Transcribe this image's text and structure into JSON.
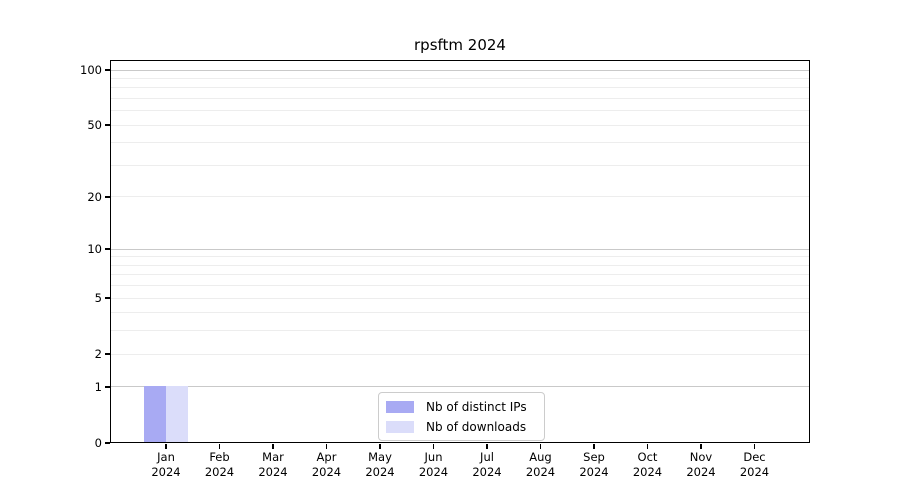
{
  "chart_data": {
    "type": "bar",
    "title": "rpsftm 2024",
    "categories": [
      "Jan 2024",
      "Feb 2024",
      "Mar 2024",
      "Apr 2024",
      "May 2024",
      "Jun 2024",
      "Jul 2024",
      "Aug 2024",
      "Sep 2024",
      "Oct 2024",
      "Nov 2024",
      "Dec 2024"
    ],
    "months": [
      "Jan",
      "Feb",
      "Mar",
      "Apr",
      "May",
      "Jun",
      "Jul",
      "Aug",
      "Sep",
      "Oct",
      "Nov",
      "Dec"
    ],
    "year": "2024",
    "series": [
      {
        "name": "Nb of distinct IPs",
        "color": "#a8aaf3",
        "values": [
          1,
          0,
          0,
          0,
          0,
          0,
          0,
          0,
          0,
          0,
          0,
          0
        ]
      },
      {
        "name": "Nb of downloads",
        "color": "#dbddfa",
        "values": [
          1,
          0,
          0,
          0,
          0,
          0,
          0,
          0,
          0,
          0,
          0,
          0
        ]
      }
    ],
    "xlabel": "",
    "ylabel": "",
    "y_axis": {
      "scale": "log1p",
      "ticks": [
        0,
        1,
        2,
        5,
        10,
        20,
        50,
        100
      ],
      "range": [
        0,
        115
      ],
      "grid_major": [
        1,
        10,
        100
      ],
      "grid_minor": [
        2,
        3,
        4,
        5,
        6,
        7,
        8,
        9,
        20,
        30,
        40,
        50,
        60,
        70,
        80,
        90
      ]
    },
    "legend": {
      "position": "bottom-center-inside",
      "entries": [
        "Nb of distinct IPs",
        "Nb of downloads"
      ]
    },
    "grid": true
  },
  "colors": {
    "background": "#ffffff",
    "axis": "#000000",
    "grid_major": "#c9c9c9",
    "grid_minor": "#ededed",
    "legend_border": "#cccccc",
    "bar_distinct_ips": "#a8aaf3",
    "bar_downloads": "#dbddfa"
  }
}
